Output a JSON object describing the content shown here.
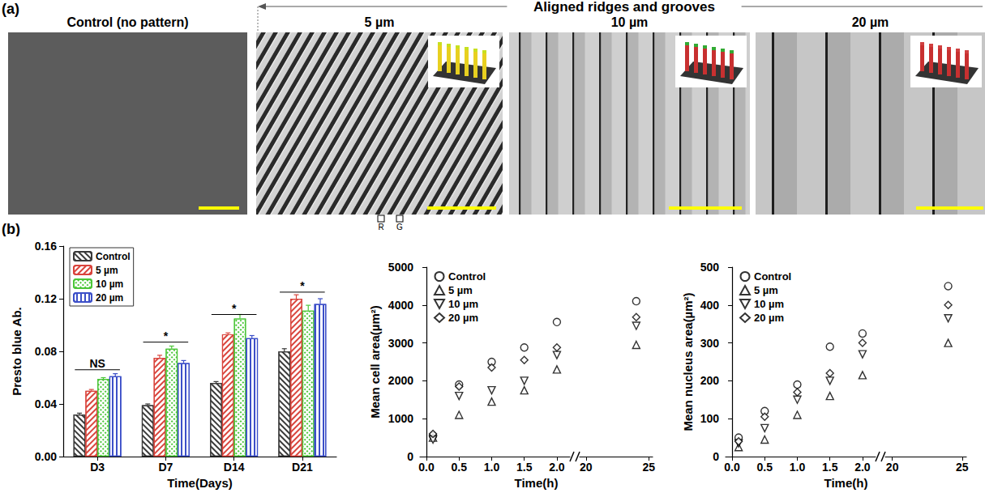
{
  "figure": {
    "panel_a": {
      "letter": "(a)",
      "group_title": "Aligned ridges and grooves",
      "titles": [
        "Control (no pattern)",
        "5 µm",
        "10 µm",
        "20 µm"
      ],
      "ridge_label": "R",
      "groove_label": "G"
    },
    "panel_b": {
      "letter": "(b)"
    }
  },
  "chart_data": [
    {
      "type": "bar",
      "y_label": "Presto blue Ab.",
      "x_label": "Time(Days)",
      "categories": [
        "D3",
        "D7",
        "D14",
        "D21"
      ],
      "series": [
        {
          "name": "Control",
          "color": "#3a3a3a",
          "values": [
            0.032,
            0.039,
            0.056,
            0.08
          ],
          "errors": [
            0.001,
            0.001,
            0.001,
            0.002
          ]
        },
        {
          "name": "5 µm",
          "color": "#d9443c",
          "values": [
            0.05,
            0.075,
            0.093,
            0.12
          ],
          "errors": [
            0.001,
            0.002,
            0.001,
            0.003
          ]
        },
        {
          "name": "10 µm",
          "color": "#4cc639",
          "values": [
            0.059,
            0.082,
            0.105,
            0.111
          ],
          "errors": [
            0.001,
            0.002,
            0.003,
            0.004
          ]
        },
        {
          "name": "20 µm",
          "color": "#3c4fc8",
          "values": [
            0.061,
            0.071,
            0.09,
            0.116
          ],
          "errors": [
            0.002,
            0.002,
            0.002,
            0.004
          ]
        }
      ],
      "ylim": [
        0,
        0.16
      ],
      "yticks": [
        {
          "value": 0,
          "label": "0.00"
        },
        0.04,
        0.08,
        0.12,
        0.16
      ],
      "grid": false,
      "legend": "upper left",
      "annotations": [
        {
          "category": "D3",
          "y": 0.066,
          "text": "NS"
        },
        {
          "category": "D7",
          "y": 0.087,
          "text": "*"
        },
        {
          "category": "D14",
          "y": 0.108,
          "text": "*"
        },
        {
          "category": "D21",
          "y": 0.125,
          "text": "*"
        }
      ]
    },
    {
      "type": "scatter",
      "y_label": "Mean cell area(µm²)",
      "x_label": "Time(h)",
      "x": [
        0.1,
        0.5,
        1,
        1.5,
        2,
        24
      ],
      "xlim": [
        -0.1,
        25.3
      ],
      "xbreak": [
        2.2,
        19.5
      ],
      "xticks": [
        {
          "value": 0,
          "label": "0.0"
        },
        0.5,
        {
          "value": 1,
          "label": "1.0"
        },
        1.5,
        {
          "value": 2,
          "label": "2.0"
        },
        20,
        25
      ],
      "ylim": [
        0,
        5000
      ],
      "yticks": [
        0,
        1000,
        2000,
        3000,
        4000,
        5000
      ],
      "grid": false,
      "legend": "upper left",
      "series": [
        {
          "name": "Control",
          "color": "#000000",
          "marker": "circle",
          "values": [
            550,
            1900,
            2500,
            2880,
            3550,
            4100
          ]
        },
        {
          "name": "5 µm",
          "color": "#000000",
          "marker": "triangle",
          "values": [
            500,
            1100,
            1450,
            1750,
            2300,
            2950
          ]
        },
        {
          "name": "10 µm",
          "color": "#000000",
          "marker": "triangle-down",
          "values": [
            450,
            1600,
            1750,
            2000,
            2680,
            3450
          ]
        },
        {
          "name": "20 µm",
          "color": "#000000",
          "marker": "diamond",
          "values": [
            600,
            1850,
            2350,
            2550,
            2880,
            3680
          ]
        }
      ]
    },
    {
      "type": "scatter",
      "y_label": "Mean nucleus area(µm²)",
      "x_label": "Time(h)",
      "x": [
        0.1,
        0.5,
        1,
        1.5,
        2,
        24
      ],
      "xlim": [
        -0.1,
        25.3
      ],
      "xbreak": [
        2.2,
        19.5
      ],
      "xticks": [
        {
          "value": 0,
          "label": "0.0"
        },
        0.5,
        {
          "value": 1,
          "label": "1.0"
        },
        1.5,
        {
          "value": 2,
          "label": "2.0"
        },
        20,
        25
      ],
      "ylim": [
        0,
        500
      ],
      "yticks": [
        0,
        100,
        200,
        300,
        400,
        500
      ],
      "grid": false,
      "legend": "upper left",
      "series": [
        {
          "name": "Control",
          "color": "#000000",
          "marker": "circle",
          "values": [
            50,
            120,
            190,
            290,
            325,
            450
          ]
        },
        {
          "name": "5 µm",
          "color": "#000000",
          "marker": "triangle",
          "values": [
            25,
            45,
            110,
            160,
            215,
            300
          ]
        },
        {
          "name": "10 µm",
          "color": "#000000",
          "marker": "triangle-down",
          "values": [
            35,
            75,
            150,
            200,
            270,
            365
          ]
        },
        {
          "name": "20 µm",
          "color": "#000000",
          "marker": "diamond",
          "values": [
            40,
            105,
            170,
            220,
            300,
            400
          ]
        }
      ]
    }
  ]
}
